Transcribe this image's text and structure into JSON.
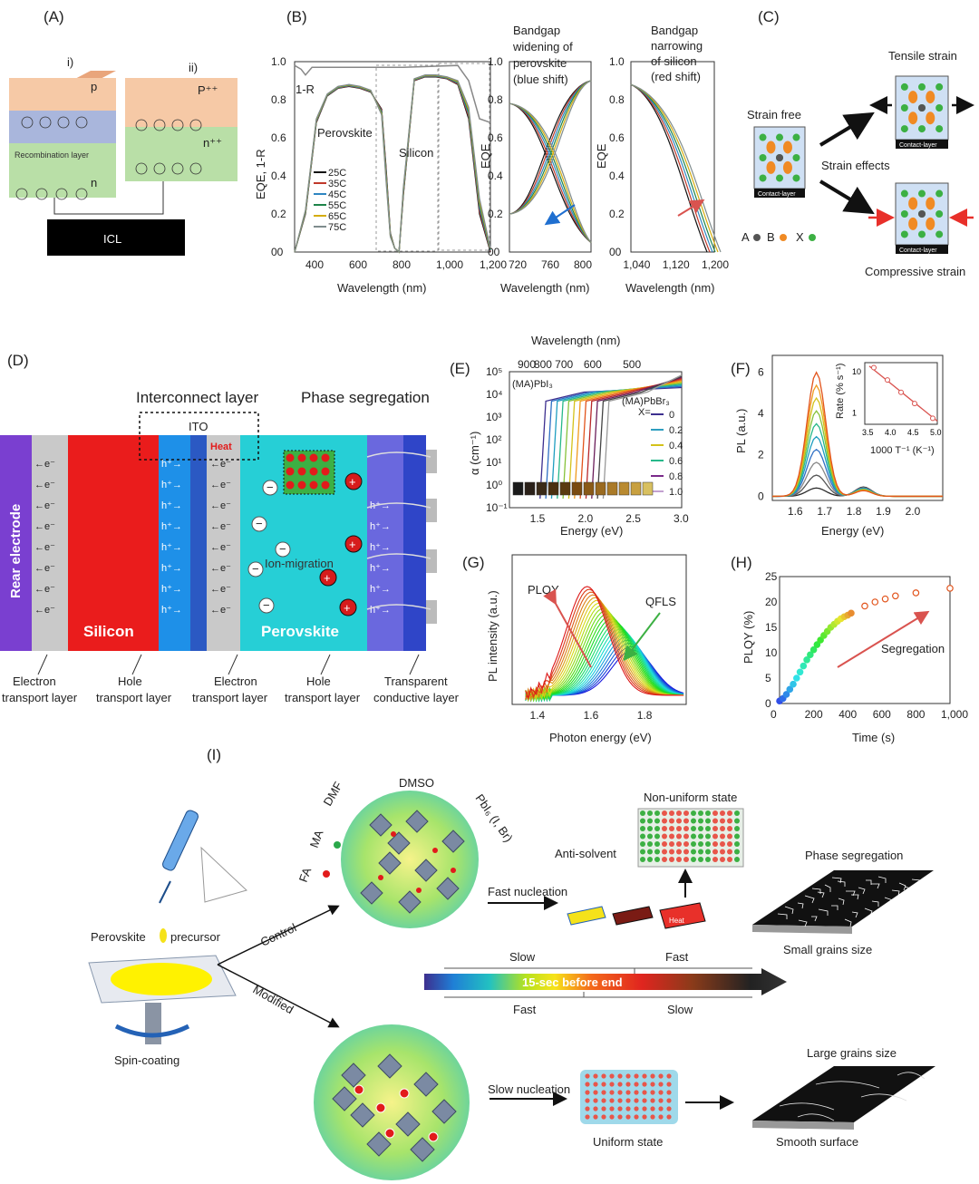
{
  "panels": {
    "A": {
      "label": "(A)",
      "sub_i": "i)",
      "sub_ii": "ii)",
      "p": "p",
      "n": "n",
      "p_pp": "P⁺⁺",
      "n_pp": "n⁺⁺",
      "recomb": "Recombination layer",
      "icl": "ICL"
    },
    "B": {
      "label": "(B)",
      "ylabel_main": "EQE, 1-R",
      "ylabel_eqe": "EQE",
      "xlabel": "Wavelength (nm)",
      "one_minus_r": "1-R",
      "perovskite": "Perovskite",
      "silicon": "Silicon",
      "blue_shift": [
        "Bandgap",
        "widening of",
        "perovskite",
        "(blue shift)"
      ],
      "red_shift": [
        "Bandgap",
        "narrowing",
        "of silicon",
        "(red shift)"
      ],
      "yticks": [
        "1.0",
        "0.8",
        "0.6",
        "0.4",
        "0.2",
        "00"
      ],
      "xticks_main": [
        "400",
        "600",
        "800",
        "1,000",
        "1,200"
      ],
      "xticks_mid": [
        "720",
        "760",
        "800"
      ],
      "xticks_right": [
        "1,040",
        "1,120",
        "1,200"
      ],
      "legend": [
        {
          "name": "25C",
          "color": "#111111"
        },
        {
          "name": "35C",
          "color": "#c0392b"
        },
        {
          "name": "45C",
          "color": "#2e86c1"
        },
        {
          "name": "55C",
          "color": "#1e8449"
        },
        {
          "name": "65C",
          "color": "#d4ac0d"
        },
        {
          "name": "75C",
          "color": "#7f8c8d"
        }
      ]
    },
    "C": {
      "label": "(C)",
      "strain_free": "Strain free",
      "tensile": "Tensile strain",
      "compressive": "Compressive strain",
      "effects": "Strain effects",
      "contact": "Contact-layer",
      "A": "A",
      "B": "B",
      "X": "X"
    },
    "D": {
      "label": "(D)",
      "interconnect": "Interconnect layer",
      "ito": "ITO",
      "heat": "Heat",
      "phase_seg": "Phase segregation",
      "ion_mig": "Ion-migration",
      "rear": "Rear electrode",
      "silicon": "Silicon",
      "perovskite": "Perovskite",
      "e_label": "←e⁻",
      "h_label": "h⁺→",
      "minus": "−",
      "plus": "+",
      "captions": [
        [
          "Electron",
          "transport layer"
        ],
        [
          "Hole",
          "transport layer"
        ],
        [
          "Electron",
          "transport layer"
        ],
        [
          "Hole",
          "transport layer"
        ],
        [
          "Transparent",
          "conductive layer"
        ]
      ]
    },
    "E": {
      "label": "(E)",
      "top_label": "Wavelength (nm)",
      "top_ticks": [
        "900",
        "800",
        "700",
        "600",
        "500"
      ],
      "ylabel": "α (cm⁻¹)",
      "xlabel": "Energy (eV)",
      "yticks": [
        "10⁵",
        "10⁴",
        "10³",
        "10²",
        "10¹",
        "10⁰",
        "10⁻¹"
      ],
      "xticks": [
        "1.5",
        "2.0",
        "2.5",
        "3.0"
      ],
      "pbi": "(MA)PbI₃",
      "pbbr": "(MA)PbBr₃",
      "xeq": "X=",
      "xvals": [
        "0",
        "0.2",
        "0.4",
        "0.6",
        "0.8",
        "1.0"
      ]
    },
    "F": {
      "label": "(F)",
      "ylabel": "PL (a.u.)",
      "xlabel": "Energy (eV)",
      "yticks": [
        "6",
        "4",
        "2",
        "0"
      ],
      "xticks": [
        "1.6",
        "1.7",
        "1.8",
        "1.9",
        "2.0"
      ],
      "inset_ylabel": "Rate (% s⁻¹)",
      "inset_xlabel": "1000 T⁻¹ (K⁻¹)",
      "inset_yticks": [
        "10",
        "1"
      ],
      "inset_xticks": [
        "3.5",
        "4.0",
        "4.5",
        "5.0"
      ]
    },
    "G": {
      "label": "(G)",
      "plqy": "PLQY",
      "qfls": "QFLS",
      "ylabel": "PL intensity (a.u.)",
      "xlabel": "Photon energy (eV)",
      "xticks": [
        "1.4",
        "1.6",
        "1.8"
      ]
    },
    "H": {
      "label": "(H)",
      "ylabel": "PLQY (%)",
      "xlabel": "Time (s)",
      "segregation": "Segregation",
      "yticks": [
        "25",
        "20",
        "15",
        "10",
        "5",
        "0"
      ],
      "xticks": [
        "0",
        "200",
        "400",
        "600",
        "800",
        "1,000"
      ]
    },
    "I": {
      "label": "(I)",
      "dmso": "DMSO",
      "dmf": "DMF",
      "ma": "MA",
      "fa": "FA",
      "pbi6": "PbI₆ (I, Br)",
      "non_uniform": "Non-uniform state",
      "anti_solvent": "Anti-solvent",
      "fast_nuc": "Fast nucleation",
      "phase_seg": "Phase segregation",
      "small_grains": "Small grains size",
      "perov": "Perovskite",
      "precursor": "precursor",
      "control": "Control",
      "modified": "Modified",
      "spin": "Spin-coating",
      "slow": "Slow",
      "fast": "Fast",
      "before_end": "15-sec before end",
      "slow_nuc": "Slow nucleation",
      "uniform": "Uniform state",
      "large_grains": "Large grains size",
      "smooth": "Smooth surface",
      "heat": "Heat"
    }
  },
  "chart_data": [
    {
      "type": "line",
      "panel": "B",
      "title": "",
      "xlabel": "Wavelength (nm)",
      "ylabel": "EQE, 1-R",
      "xlim": [
        300,
        1200
      ],
      "ylim": [
        0,
        1.0
      ],
      "series": [
        {
          "name": "25C",
          "x": [
            300,
            350,
            400,
            450,
            500,
            550,
            600,
            650,
            700,
            720,
            740,
            760,
            780,
            800,
            850,
            900,
            950,
            1000,
            1050,
            1100,
            1150,
            1200
          ],
          "values": [
            0.0,
            0.2,
            0.68,
            0.82,
            0.86,
            0.87,
            0.86,
            0.84,
            0.75,
            0.45,
            0.1,
            0.02,
            0.0,
            0.3,
            0.9,
            0.92,
            0.92,
            0.91,
            0.88,
            0.7,
            0.2,
            0.0
          ]
        },
        {
          "name": "75C",
          "x": [
            300,
            350,
            400,
            450,
            500,
            550,
            600,
            650,
            700,
            720,
            740,
            760,
            780,
            800,
            850,
            900,
            950,
            1000,
            1050,
            1100,
            1150,
            1200
          ],
          "values": [
            0.0,
            0.22,
            0.7,
            0.83,
            0.87,
            0.88,
            0.87,
            0.85,
            0.72,
            0.38,
            0.08,
            0.02,
            0.0,
            0.34,
            0.91,
            0.93,
            0.93,
            0.92,
            0.9,
            0.76,
            0.28,
            0.02
          ]
        }
      ]
    },
    {
      "type": "scatter",
      "panel": "H",
      "title": "",
      "xlabel": "Time (s)",
      "ylabel": "PLQY (%)",
      "xlim": [
        0,
        1000
      ],
      "ylim": [
        0,
        25
      ],
      "x": [
        0,
        20,
        40,
        60,
        80,
        100,
        120,
        140,
        160,
        180,
        200,
        220,
        240,
        260,
        280,
        300,
        320,
        340,
        360,
        380,
        400,
        420,
        500,
        560,
        620,
        680,
        800,
        1000
      ],
      "values": [
        0.5,
        1.0,
        1.8,
        2.8,
        3.8,
        5.0,
        6.2,
        7.4,
        8.6,
        9.6,
        10.6,
        11.6,
        12.5,
        13.4,
        14.2,
        15.0,
        15.6,
        16.2,
        16.7,
        17.1,
        17.4,
        17.8,
        19.2,
        20.0,
        20.6,
        21.2,
        21.8,
        22.7
      ]
    },
    {
      "type": "scatter",
      "panel": "F-inset",
      "title": "",
      "xlabel": "1000 T⁻¹ (K⁻¹)",
      "ylabel": "Rate (% s⁻¹)",
      "xlim": [
        3.4,
        5.0
      ],
      "x": [
        3.6,
        3.9,
        4.2,
        4.5,
        4.9
      ],
      "values": [
        12,
        6,
        3,
        1.6,
        0.7
      ]
    }
  ]
}
